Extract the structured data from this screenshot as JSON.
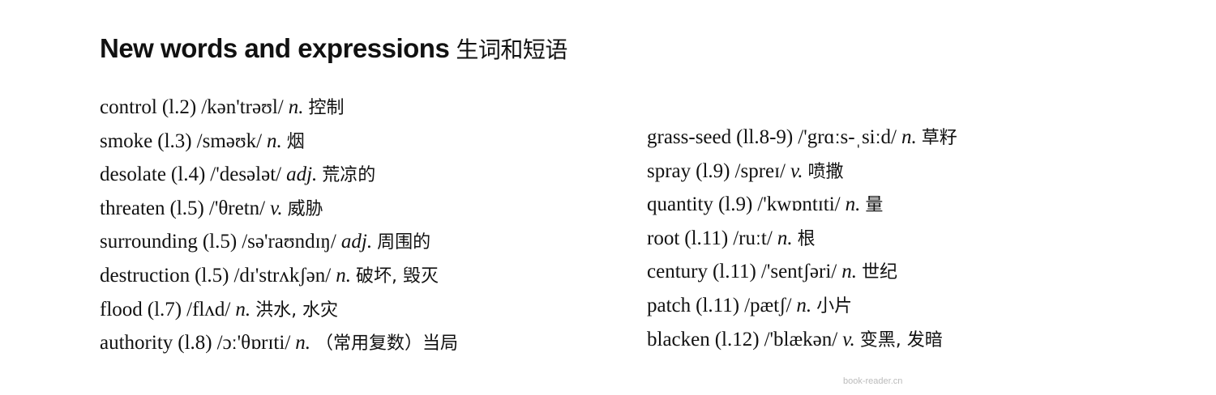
{
  "heading": {
    "en": "New words and expressions",
    "zh": "生词和短语"
  },
  "left_entries": [
    {
      "word": "control",
      "ref": "(l.2)",
      "phonetic": "/kən'trəʊl/",
      "pos": "n.",
      "meaning": "控制"
    },
    {
      "word": "smoke",
      "ref": "(l.3)",
      "phonetic": "/sməʊk/",
      "pos": "n.",
      "meaning": "烟"
    },
    {
      "word": "desolate",
      "ref": "(l.4)",
      "phonetic": "/'desələt/",
      "pos": "adj.",
      "meaning": "荒凉的"
    },
    {
      "word": "threaten",
      "ref": "(l.5)",
      "phonetic": "/'θretn/",
      "pos": "v.",
      "meaning": "威胁"
    },
    {
      "word": "surrounding",
      "ref": "(l.5)",
      "phonetic": "/sə'raʊndɪŋ/",
      "pos": "adj.",
      "meaning": "周围的"
    },
    {
      "word": "destruction",
      "ref": "(l.5)",
      "phonetic": "/dɪ'strʌkʃən/",
      "pos": "n.",
      "meaning": "破坏, 毁灭"
    },
    {
      "word": "flood",
      "ref": "(l.7)",
      "phonetic": "/flʌd/",
      "pos": "n.",
      "meaning": "洪水, 水灾"
    },
    {
      "word": "authority",
      "ref": "(l.8)",
      "phonetic": "/ɔː'θɒrɪti/",
      "pos": "n.",
      "meaning": "（常用复数）当局"
    }
  ],
  "right_entries": [
    {
      "word": "grass-seed",
      "ref": "(ll.8-9)",
      "phonetic": "/'grɑːs-ˌsiːd/",
      "pos": "n.",
      "meaning": "草籽"
    },
    {
      "word": "spray",
      "ref": "(l.9)",
      "phonetic": "/spreɪ/",
      "pos": "v.",
      "meaning": "喷撒"
    },
    {
      "word": "quantity",
      "ref": "(l.9)",
      "phonetic": "/'kwɒntɪti/",
      "pos": "n.",
      "meaning": "量"
    },
    {
      "word": "root",
      "ref": "(l.11)",
      "phonetic": "/ruːt/",
      "pos": "n.",
      "meaning": "根"
    },
    {
      "word": "century",
      "ref": "(l.11)",
      "phonetic": "/'sentʃəri/",
      "pos": "n.",
      "meaning": "世纪"
    },
    {
      "word": "patch",
      "ref": "(l.11)",
      "phonetic": "/pætʃ/",
      "pos": "n.",
      "meaning": "小片"
    },
    {
      "word": "blacken",
      "ref": "(l.12)",
      "phonetic": "/'blækən/",
      "pos": "v.",
      "meaning": "变黑, 发暗"
    }
  ],
  "watermark": "book-reader.cn"
}
